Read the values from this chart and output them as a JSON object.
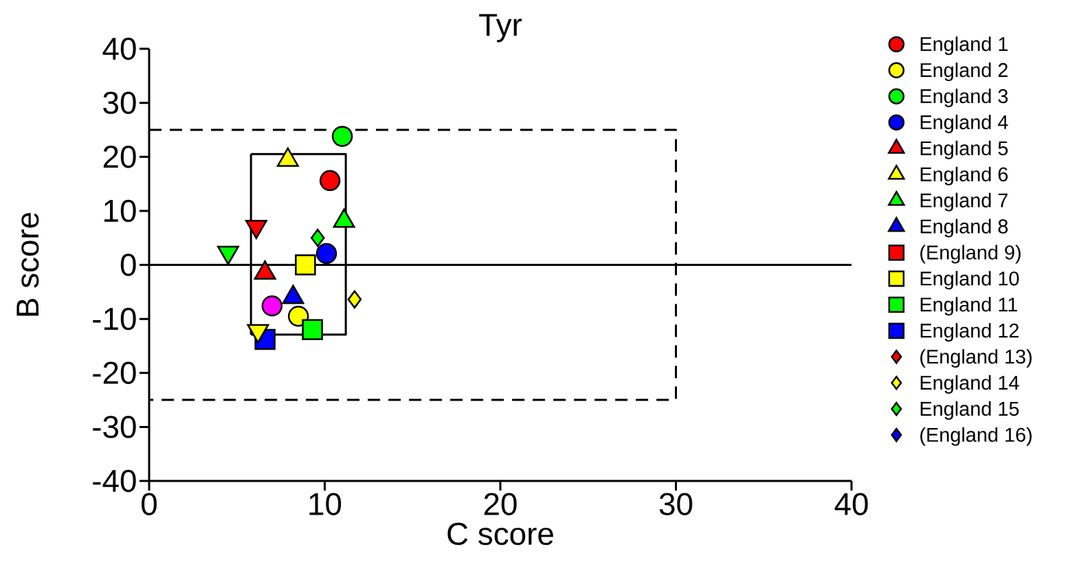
{
  "chart_data": {
    "type": "scatter",
    "title": "Tyr",
    "xlabel": "C score",
    "ylabel": "B score",
    "xlim": [
      0,
      40
    ],
    "ylim": [
      -40,
      40
    ],
    "xticks": [
      0,
      10,
      20,
      30,
      40
    ],
    "yticks": [
      -40,
      -30,
      -20,
      -10,
      0,
      10,
      20,
      30,
      40
    ],
    "legend": "right",
    "ref_lines": [
      {
        "axis": "y",
        "value": 0,
        "color": "#000000"
      }
    ],
    "series": [
      {
        "name": "England 1",
        "color": "#ff0000",
        "marker": "circle",
        "x": [
          10.3
        ],
        "values": [
          15.6
        ]
      },
      {
        "name": "England 2",
        "color": "#ffff00",
        "marker": "circle",
        "x": [
          8.5
        ],
        "values": [
          -9.5
        ]
      },
      {
        "name": "England 3",
        "color": "#00ff00",
        "marker": "circle",
        "x": [
          11.0
        ],
        "values": [
          23.8
        ]
      },
      {
        "name": "England 4",
        "color": "#0000ff",
        "marker": "circle",
        "x": [
          10.1
        ],
        "values": [
          2.1
        ]
      },
      {
        "name": "England 5",
        "color": "#ff0000",
        "marker": "triangle",
        "x": [
          6.6
        ],
        "values": [
          -1.5
        ]
      },
      {
        "name": "England 6",
        "color": "#ffff00",
        "marker": "triangle",
        "x": [
          7.9
        ],
        "values": [
          19.4
        ]
      },
      {
        "name": "England 7",
        "color": "#00ff00",
        "marker": "triangle",
        "x": [
          11.1
        ],
        "values": [
          8.1
        ]
      },
      {
        "name": "England 8",
        "color": "#0000ff",
        "marker": "triangle",
        "x": [
          8.2
        ],
        "values": [
          -6.0
        ]
      },
      {
        "name": "(England 9)",
        "color": "#ff0000",
        "marker": "square"
      },
      {
        "name": "England 10",
        "color": "#ffff00",
        "marker": "square",
        "x": [
          8.9
        ],
        "values": [
          0.0
        ]
      },
      {
        "name": "England 11",
        "color": "#00ff00",
        "marker": "square",
        "x": [
          9.3
        ],
        "values": [
          -12.0
        ]
      },
      {
        "name": "England 12",
        "color": "#0000ff",
        "marker": "square",
        "x": [
          6.6
        ],
        "values": [
          -13.8
        ]
      },
      {
        "name": "(England 13)",
        "color": "#ff0000",
        "marker": "diamond"
      },
      {
        "name": "England 14",
        "color": "#ffff00",
        "marker": "diamond",
        "x": [
          11.7
        ],
        "values": [
          -6.4
        ]
      },
      {
        "name": "England 15",
        "color": "#00ff00",
        "marker": "diamond",
        "x": [
          9.6
        ],
        "values": [
          5.0
        ]
      },
      {
        "name": "(England 16)",
        "color": "#0000ff",
        "marker": "diamond"
      },
      {
        "color": "#ff0000",
        "marker": "triangle_down",
        "x": [
          6.1
        ],
        "values": [
          7.1
        ]
      },
      {
        "color": "#00ff00",
        "marker": "triangle_down",
        "x": [
          4.5
        ],
        "values": [
          2.3
        ]
      },
      {
        "color": "#ffff00",
        "marker": "triangle_down",
        "x": [
          6.2
        ],
        "values": [
          -12.2
        ]
      },
      {
        "color": "#ff00ff",
        "marker": "circle",
        "x": [
          7.0
        ],
        "values": [
          -7.6
        ]
      },
      {
        "type": "line",
        "color": "#000000",
        "marker": "none",
        "line_style": "dashed",
        "x": [
          0,
          30,
          30,
          0
        ],
        "values": [
          25,
          25,
          -25,
          -25
        ]
      },
      {
        "type": "line",
        "color": "#000000",
        "marker": "none",
        "line_style": "solid",
        "x": [
          5.8,
          11.2,
          11.2,
          5.8
        ],
        "values": [
          20.5,
          20.5,
          -12.9,
          -12.9
        ]
      },
      {
        "type": "line",
        "color": "#000000",
        "marker": "none",
        "line_style": "solid",
        "x": [
          5.8,
          5.8
        ],
        "values": [
          -12.9,
          20.5
        ]
      }
    ]
  }
}
